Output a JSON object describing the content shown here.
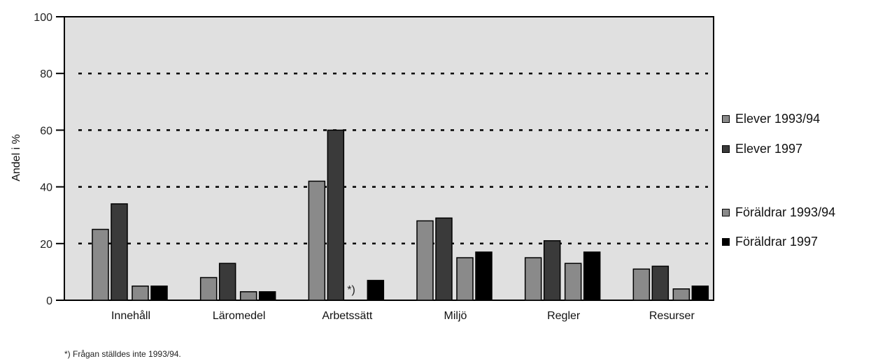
{
  "chart_data": {
    "type": "bar",
    "categories": [
      "Innehåll",
      "Läromedel",
      "Arbetssätt",
      "Miljö",
      "Regler",
      "Resurser"
    ],
    "series": [
      {
        "name": "Elever 1993/94",
        "values": [
          25,
          8,
          42,
          28,
          15,
          11
        ],
        "color": "#8a8a8a"
      },
      {
        "name": "Elever 1997",
        "values": [
          34,
          13,
          60,
          29,
          21,
          12
        ],
        "color": "#3a3a3a"
      },
      {
        "name": "Föräldrar 1993/94",
        "values": [
          5,
          3,
          null,
          15,
          13,
          4
        ],
        "color": "#8a8a8a"
      },
      {
        "name": "Föräldrar 1997",
        "values": [
          5,
          3,
          7,
          17,
          17,
          5
        ],
        "color": "#000000"
      }
    ],
    "ylabel": "Andel i %",
    "xlabel": "",
    "ylim": [
      0,
      100
    ],
    "yticks": [
      0,
      20,
      40,
      60,
      80,
      100
    ],
    "grid": "dashed horizontal",
    "legend_placement": "right",
    "background": "#e0e0e0",
    "annotation": "*)",
    "footnote": "*) Frågan ställdes inte 1993/94."
  }
}
